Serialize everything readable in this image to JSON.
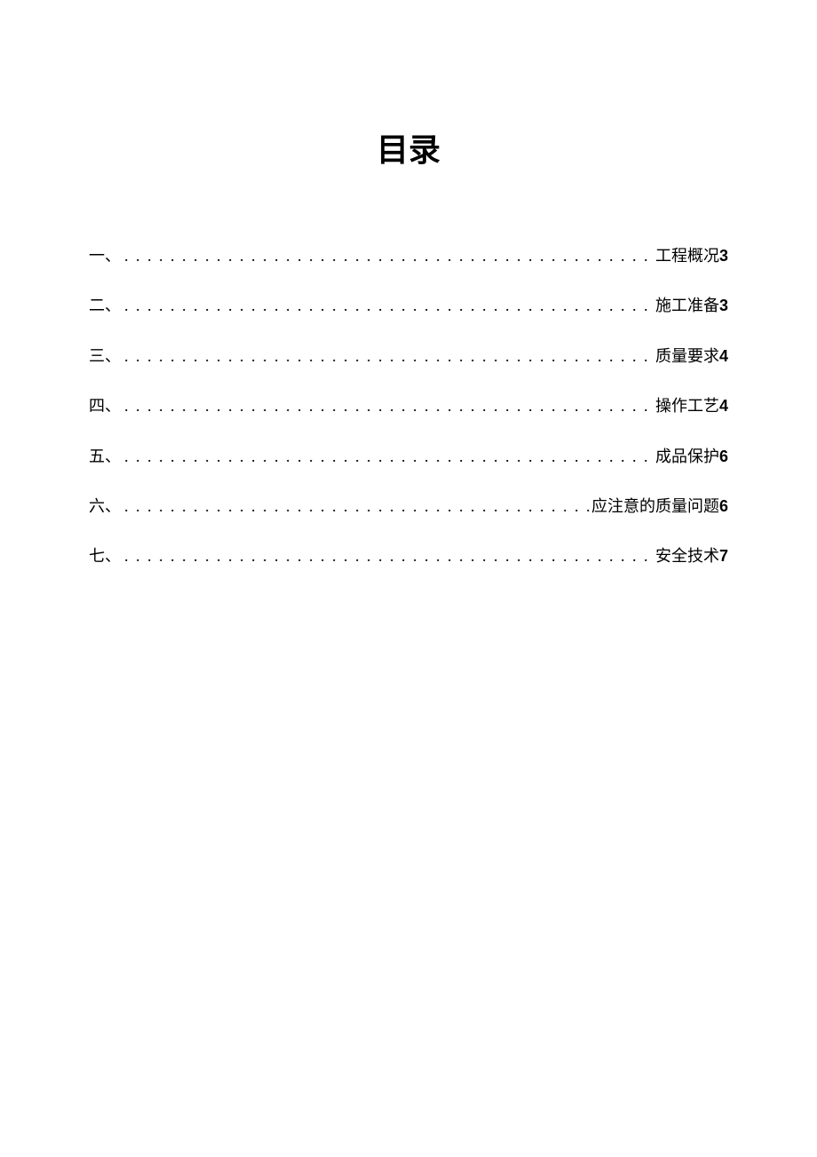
{
  "title": "目录",
  "toc": {
    "entries": [
      {
        "number": "一、",
        "label": "工程概况",
        "page": "3"
      },
      {
        "number": "二、",
        "label": "施工准备",
        "page": "3"
      },
      {
        "number": "三、",
        "label": "质量要求",
        "page": "4"
      },
      {
        "number": "四、",
        "label": "操作工艺",
        "page": "4"
      },
      {
        "number": "五、",
        "label": "成品保护",
        "page": "6"
      },
      {
        "number": "六、",
        "label": "应注意的质量问题",
        "page": "6"
      },
      {
        "number": "七、",
        "label": "安全技术",
        "page": "7"
      }
    ]
  },
  "styling": {
    "background_color": "#ffffff",
    "text_color": "#000000",
    "title_fontsize": 36,
    "entry_fontsize": 18,
    "title_font_family": "SimHei",
    "body_font_family": "SimSun",
    "dot_leader_char": "."
  }
}
